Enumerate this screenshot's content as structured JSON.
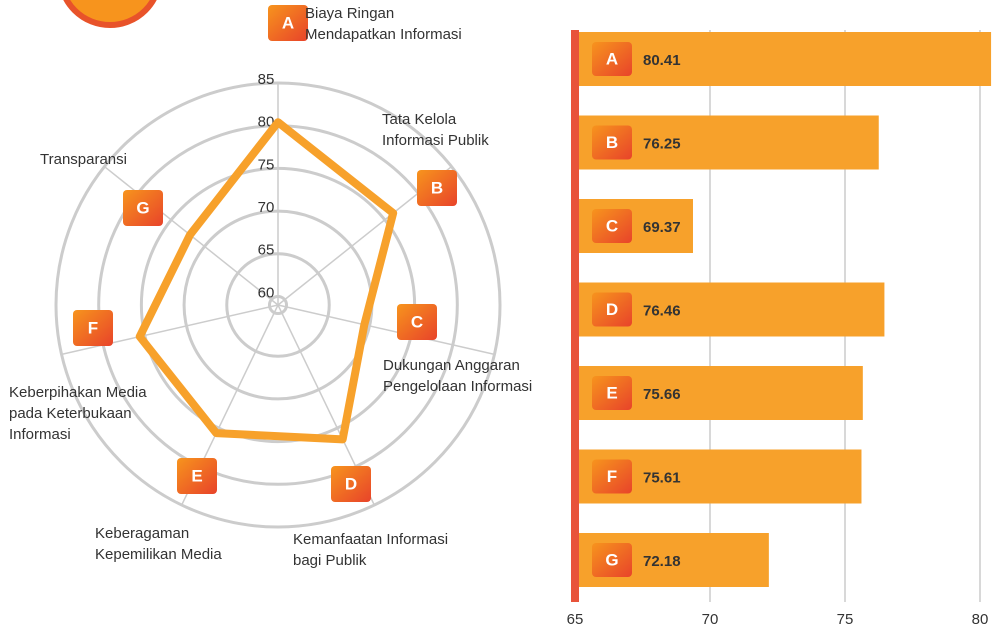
{
  "chart_data": [
    {
      "type": "radar",
      "categories": [
        "A",
        "B",
        "C",
        "D",
        "E",
        "F",
        "G"
      ],
      "category_labels": [
        [
          "Biaya Ringan",
          "Mendapatkan Informasi"
        ],
        [
          "Tata Kelola",
          "Informasi Publik"
        ],
        [
          "Dukungan Anggaran",
          "Pengelolaan Informasi"
        ],
        [
          "Kemanfaatan Informasi",
          "bagi Publik"
        ],
        [
          "Keberagaman",
          "Kepemilikan Media"
        ],
        [
          "Keberpihakan Media",
          "pada Keterbukaan",
          "Informasi"
        ],
        [
          "Transparansi"
        ]
      ],
      "values": [
        80.41,
        76.25,
        69.37,
        76.46,
        75.66,
        75.61,
        72.18
      ],
      "color": "#f7a12b",
      "rlim": [
        59,
        85
      ],
      "rticks": [
        60,
        65,
        70,
        75,
        80,
        85
      ]
    },
    {
      "type": "barh",
      "categories": [
        "A",
        "B",
        "C",
        "D",
        "E",
        "F",
        "G"
      ],
      "values": [
        80.41,
        76.25,
        69.37,
        76.46,
        75.66,
        75.61,
        72.18
      ],
      "color": "#f7a12b",
      "xlim": [
        65,
        80
      ],
      "xticks": [
        65,
        70,
        75,
        80
      ],
      "grid": true
    }
  ]
}
